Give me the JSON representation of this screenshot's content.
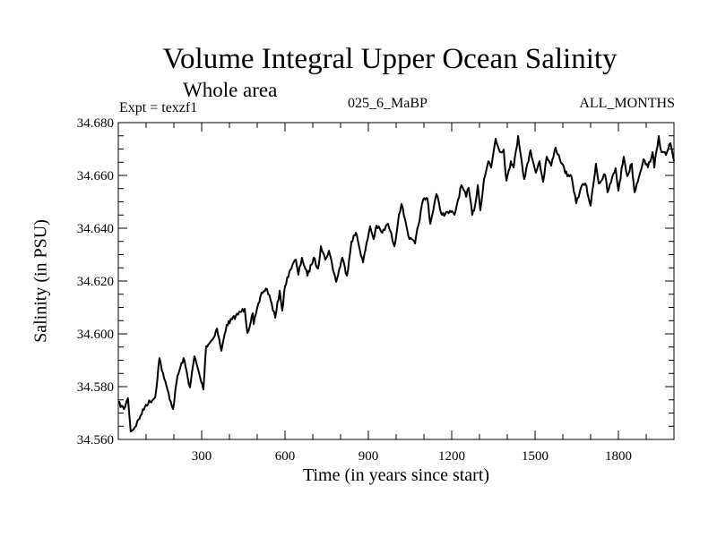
{
  "chart_data": {
    "type": "line",
    "title": "Volume Integral Upper Ocean Salinity",
    "subtitle": "Whole area",
    "annotations": {
      "left": "Expt = texzf1",
      "center": "025_6_MaBP",
      "right": "ALL_MONTHS"
    },
    "xlabel": "Time (in years since start)",
    "ylabel": "Salinity (in PSU)",
    "xlim": [
      0,
      2000
    ],
    "ylim": [
      34.56,
      34.68
    ],
    "x_ticks": [
      300,
      600,
      900,
      1200,
      1500,
      1800
    ],
    "x_tick_labels": [
      "300",
      "600",
      "900",
      "1200",
      "1500",
      "1800"
    ],
    "x_minor_step": 100,
    "y_ticks": [
      34.56,
      34.58,
      34.6,
      34.62,
      34.64,
      34.66,
      34.68
    ],
    "y_tick_labels": [
      "34.560",
      "34.580",
      "34.600",
      "34.620",
      "34.640",
      "34.660",
      "34.680"
    ],
    "y_minor_step": 0.005,
    "grid": false,
    "legend": "none",
    "line_color": "#000000",
    "series": [
      {
        "name": "Upper Ocean Salinity",
        "x": [
          0,
          20,
          35,
          45,
          60,
          80,
          100,
          133,
          148,
          165,
          197,
          213,
          235,
          258,
          274,
          306,
          316,
          340,
          355,
          371,
          390,
          423,
          455,
          465,
          484,
          487,
          516,
          535,
          548,
          565,
          581,
          590,
          600,
          616,
          639,
          648,
          661,
          681,
          703,
          719,
          729,
          745,
          758,
          784,
          806,
          823,
          839,
          855,
          881,
          906,
          919,
          929,
          950,
          971,
          994,
          1010,
          1019,
          1032,
          1048,
          1068,
          1097,
          1113,
          1123,
          1145,
          1165,
          1197,
          1210,
          1235,
          1252,
          1261,
          1274,
          1284,
          1294,
          1303,
          1316,
          1332,
          1342,
          1358,
          1374,
          1387,
          1397,
          1413,
          1423,
          1439,
          1452,
          1461,
          1484,
          1503,
          1516,
          1529,
          1542,
          1558,
          1574,
          1597,
          1616,
          1632,
          1648,
          1665,
          1681,
          1700,
          1719,
          1729,
          1752,
          1761,
          1790,
          1800,
          1819,
          1832,
          1848,
          1858,
          1890,
          1906,
          1923,
          1929,
          1945,
          1955,
          1971,
          1987,
          2000
        ],
        "y": [
          34.5739,
          34.5715,
          34.5756,
          34.563,
          34.5647,
          34.569,
          34.5732,
          34.576,
          34.5908,
          34.583,
          34.5715,
          34.584,
          34.5908,
          34.5797,
          34.5915,
          34.579,
          34.5953,
          34.598,
          34.602,
          34.5936,
          34.6034,
          34.6068,
          34.6095,
          34.6003,
          34.6078,
          34.6037,
          34.6156,
          34.617,
          34.6129,
          34.6061,
          34.6163,
          34.6088,
          34.618,
          34.6237,
          34.6281,
          34.6224,
          34.6288,
          34.622,
          34.6288,
          34.6247,
          34.6332,
          34.6281,
          34.6315,
          34.6197,
          34.6288,
          34.622,
          34.6349,
          34.6383,
          34.6271,
          34.6407,
          34.6359,
          34.641,
          34.6383,
          34.6417,
          34.6332,
          34.6451,
          34.6492,
          34.6434,
          34.6359,
          34.6342,
          34.6508,
          34.6512,
          34.6417,
          34.6529,
          34.6451,
          34.6461,
          34.6451,
          34.6563,
          34.6519,
          34.6553,
          34.6451,
          34.6485,
          34.6563,
          34.6468,
          34.6586,
          34.6654,
          34.663,
          34.6739,
          34.6688,
          34.6698,
          34.658,
          34.6654,
          34.663,
          34.6749,
          34.6654,
          34.6586,
          34.6695,
          34.661,
          34.6654,
          34.6576,
          34.6671,
          34.6637,
          34.6705,
          34.6644,
          34.6597,
          34.6593,
          34.6495,
          34.6553,
          34.657,
          34.6485,
          34.6644,
          34.657,
          34.6603,
          34.6536,
          34.6627,
          34.6542,
          34.6671,
          34.6597,
          34.6644,
          34.6536,
          34.6661,
          34.663,
          34.6688,
          34.663,
          34.6749,
          34.6688,
          34.6678,
          34.6722,
          34.6654
        ]
      }
    ]
  }
}
